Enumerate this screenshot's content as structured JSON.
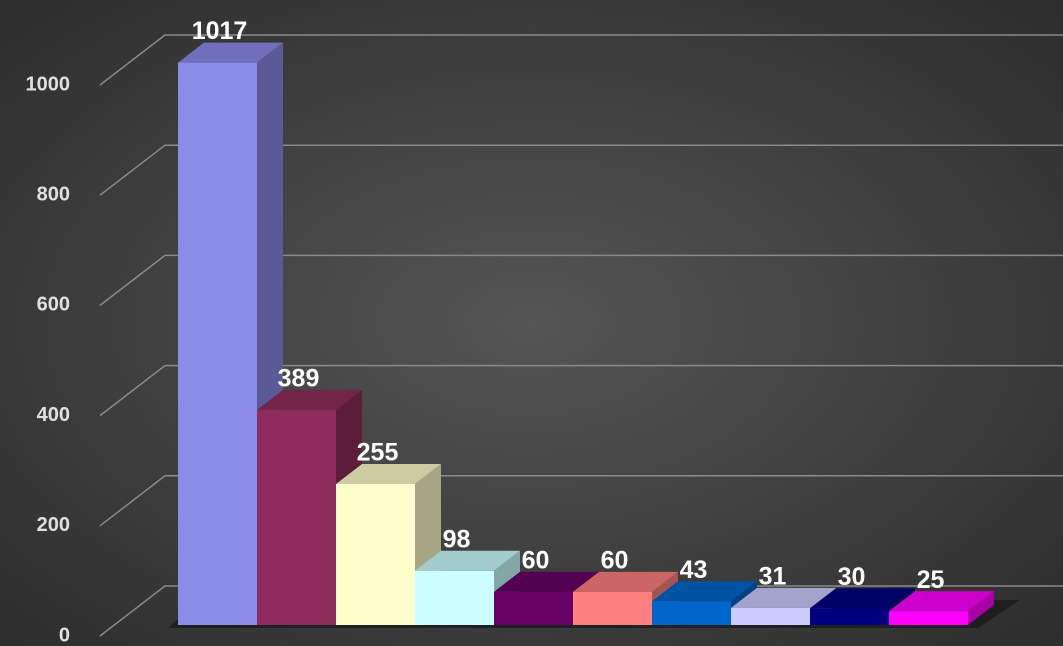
{
  "chart_data": {
    "type": "bar3d",
    "categories": [
      null,
      null,
      null,
      null,
      null,
      null,
      null,
      null,
      null,
      null
    ],
    "values": [
      1017,
      389,
      255,
      98,
      60,
      60,
      43,
      31,
      30,
      25
    ],
    "colors": [
      "#8b8bea",
      "#8e2d5b",
      "#ffffcc",
      "#ccffff",
      "#660066",
      "#ff8080",
      "#0066cc",
      "#ccccff",
      "#000080",
      "#ff00ff"
    ],
    "ylim": [
      0,
      1000
    ],
    "yticks": [
      0,
      200,
      400,
      600,
      800,
      1000
    ],
    "grid": true,
    "data_labels": true
  }
}
